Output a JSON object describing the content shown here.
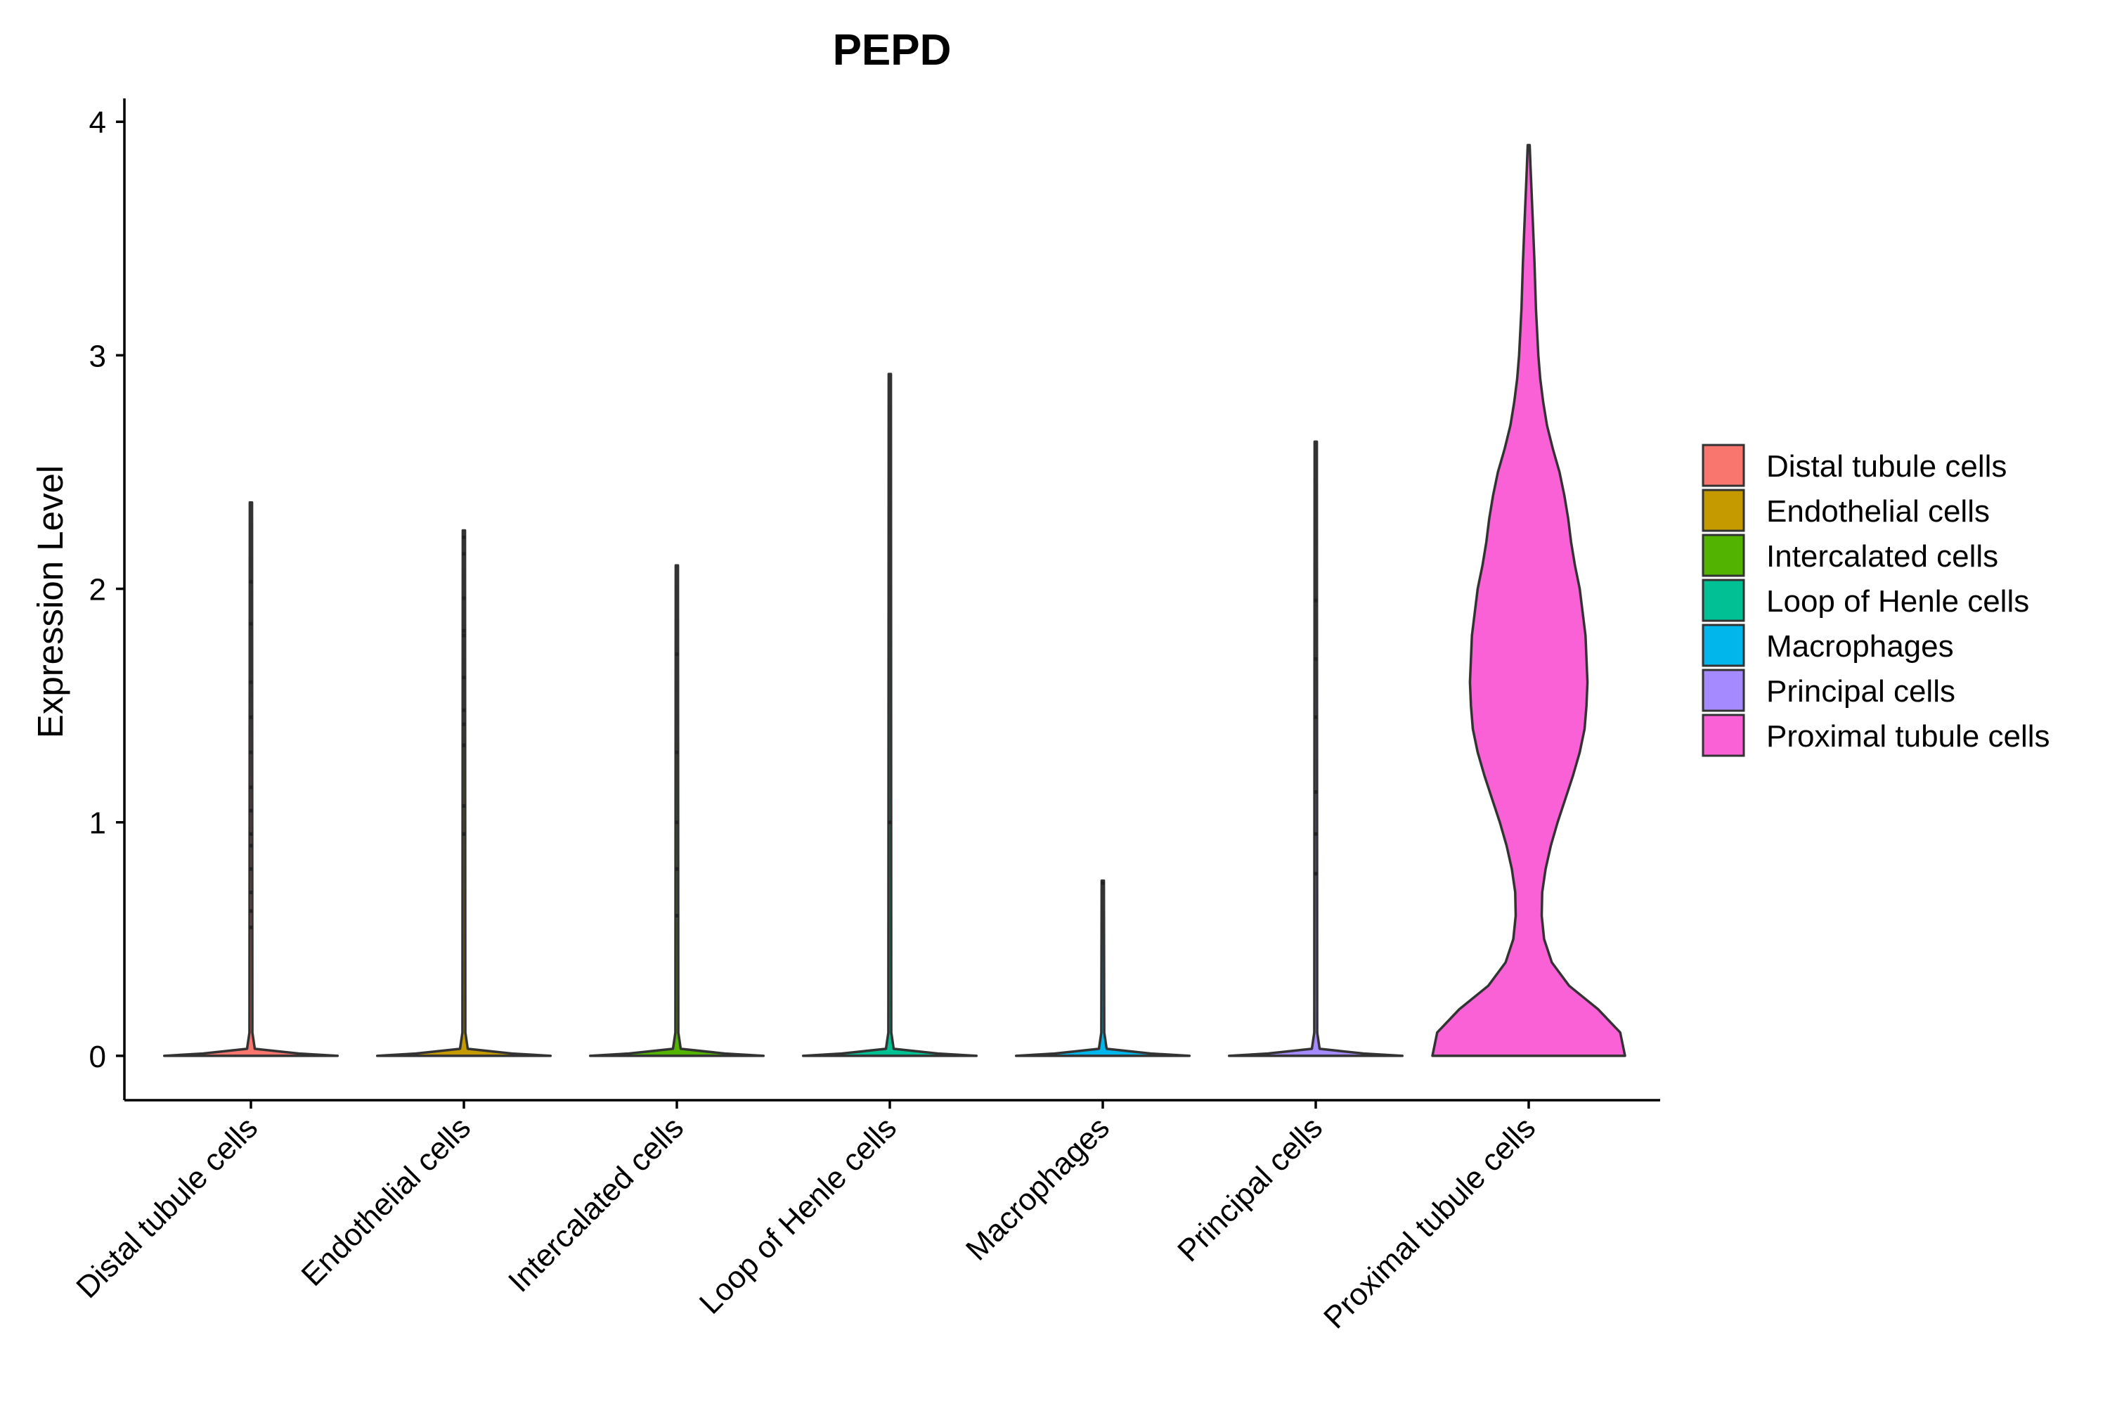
{
  "chart_data": {
    "type": "violin",
    "title": "PEPD",
    "xlabel": "",
    "ylabel": "Expression Level",
    "ylim": [
      -0.19,
      4.1
    ],
    "yticks": [
      0,
      1,
      2,
      3,
      4
    ],
    "grid": false,
    "legend_position": "right",
    "categories": [
      "Distal tubule cells",
      "Endothelial cells",
      "Intercalated cells",
      "Loop of Henle cells",
      "Macrophages",
      "Principal cells",
      "Proximal tubule cells"
    ],
    "series": [
      {
        "name": "Distal tubule cells",
        "color": "#F8766D",
        "max": 2.37,
        "density": [
          [
            0,
            0.9
          ],
          [
            0.01,
            0.5
          ],
          [
            0.03,
            0.04
          ],
          [
            0.1,
            0.015
          ],
          [
            2.37,
            0.012
          ]
        ],
        "points": [
          2.03,
          1.85,
          1.6,
          1.45,
          1.3,
          1.15,
          1.05,
          0.95,
          0.9,
          0.8,
          0.7,
          0.62,
          0.55
        ]
      },
      {
        "name": "Endothelial cells",
        "color": "#C49A00",
        "max": 2.25,
        "density": [
          [
            0,
            0.9
          ],
          [
            0.01,
            0.5
          ],
          [
            0.03,
            0.04
          ],
          [
            0.1,
            0.015
          ],
          [
            2.25,
            0.012
          ]
        ],
        "points": [
          2.22,
          2.15,
          1.96,
          1.82,
          1.8,
          1.62,
          1.48,
          1.42,
          1.33,
          1.07,
          0.95
        ]
      },
      {
        "name": "Intercalated cells",
        "color": "#53B400",
        "max": 2.1,
        "density": [
          [
            0,
            0.9
          ],
          [
            0.01,
            0.5
          ],
          [
            0.03,
            0.04
          ],
          [
            0.1,
            0.015
          ],
          [
            2.1,
            0.012
          ]
        ],
        "points": [
          1.72,
          1.3,
          1.0,
          0.8,
          0.6
        ]
      },
      {
        "name": "Loop of Henle cells",
        "color": "#00C094",
        "max": 2.92,
        "density": [
          [
            0,
            0.9
          ],
          [
            0.01,
            0.5
          ],
          [
            0.03,
            0.04
          ],
          [
            0.1,
            0.015
          ],
          [
            2.92,
            0.012
          ]
        ],
        "points": [
          1.0
        ]
      },
      {
        "name": "Macrophages",
        "color": "#00B6EB",
        "max": 0.75,
        "density": [
          [
            0,
            0.9
          ],
          [
            0.01,
            0.5
          ],
          [
            0.03,
            0.04
          ],
          [
            0.1,
            0.015
          ],
          [
            0.75,
            0.012
          ]
        ],
        "points": [
          0.74
        ]
      },
      {
        "name": "Principal cells",
        "color": "#A58AFF",
        "max": 2.63,
        "density": [
          [
            0,
            0.9
          ],
          [
            0.01,
            0.5
          ],
          [
            0.03,
            0.04
          ],
          [
            0.1,
            0.015
          ],
          [
            2.63,
            0.012
          ]
        ],
        "points": [
          1.95,
          1.7,
          1.45,
          1.13,
          0.95,
          0.78
        ]
      },
      {
        "name": "Proximal tubule cells",
        "color": "#FB61D7",
        "max": 3.9,
        "density": [
          [
            0,
            1.0
          ],
          [
            0.1,
            0.95
          ],
          [
            0.2,
            0.72
          ],
          [
            0.3,
            0.42
          ],
          [
            0.4,
            0.24
          ],
          [
            0.5,
            0.16
          ],
          [
            0.6,
            0.135
          ],
          [
            0.7,
            0.14
          ],
          [
            0.8,
            0.175
          ],
          [
            0.9,
            0.23
          ],
          [
            1.0,
            0.3
          ],
          [
            1.1,
            0.38
          ],
          [
            1.2,
            0.46
          ],
          [
            1.3,
            0.53
          ],
          [
            1.4,
            0.58
          ],
          [
            1.5,
            0.6
          ],
          [
            1.6,
            0.61
          ],
          [
            1.7,
            0.6
          ],
          [
            1.8,
            0.59
          ],
          [
            1.9,
            0.56
          ],
          [
            2.0,
            0.53
          ],
          [
            2.1,
            0.48
          ],
          [
            2.2,
            0.44
          ],
          [
            2.3,
            0.41
          ],
          [
            2.4,
            0.37
          ],
          [
            2.5,
            0.32
          ],
          [
            2.6,
            0.25
          ],
          [
            2.7,
            0.19
          ],
          [
            2.8,
            0.15
          ],
          [
            2.9,
            0.12
          ],
          [
            3.0,
            0.1
          ],
          [
            3.2,
            0.075
          ],
          [
            3.4,
            0.06
          ],
          [
            3.6,
            0.04
          ],
          [
            3.7,
            0.03
          ],
          [
            3.8,
            0.02
          ],
          [
            3.9,
            0.01
          ]
        ],
        "points": []
      }
    ]
  }
}
